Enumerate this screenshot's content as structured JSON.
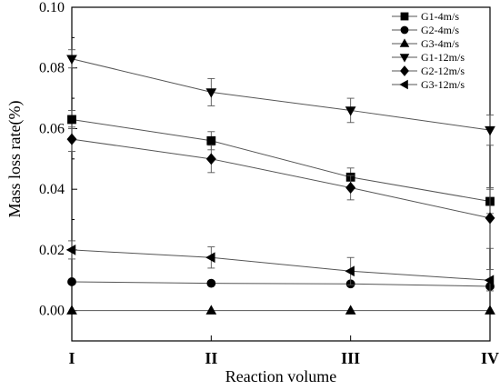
{
  "chart_data": {
    "type": "line",
    "title": "",
    "xlabel": "Reaction volume",
    "ylabel": "Mass loss rate(%)",
    "categories": [
      "I",
      "II",
      "III",
      "IV"
    ],
    "ylim": [
      -0.01,
      0.1
    ],
    "yticks": [
      "0.00",
      "0.02",
      "0.04",
      "0.06",
      "0.08",
      "0.10"
    ],
    "grid": false,
    "legend": "top-right",
    "series": [
      {
        "name": "G1-4m/s",
        "marker": "square",
        "values": [
          0.063,
          0.056,
          0.044,
          0.036
        ],
        "errors": [
          0.003,
          0.003,
          0.003,
          0.004
        ]
      },
      {
        "name": "G2-4m/s",
        "marker": "circle",
        "values": [
          0.0095,
          0.009,
          0.0088,
          0.008
        ],
        "errors": [
          0,
          0,
          0,
          0
        ]
      },
      {
        "name": "G3-4m/s",
        "marker": "triangle-up",
        "values": [
          0.0,
          0.0,
          0.0,
          0.0
        ],
        "errors": [
          0,
          0,
          0,
          0
        ]
      },
      {
        "name": "G1-12m/s",
        "marker": "triangle-down",
        "values": [
          0.083,
          0.072,
          0.066,
          0.0595
        ],
        "errors": [
          0.003,
          0.0045,
          0.004,
          0.005
        ]
      },
      {
        "name": "G2-12m/s",
        "marker": "diamond",
        "values": [
          0.0565,
          0.05,
          0.0405,
          0.0305
        ],
        "errors": [
          0.004,
          0.0045,
          0.004,
          0.01
        ]
      },
      {
        "name": "G3-12m/s",
        "marker": "triangle-left",
        "values": [
          0.02,
          0.0175,
          0.013,
          0.01
        ],
        "errors": [
          0.003,
          0.0035,
          0.0045,
          0.0035
        ]
      }
    ]
  }
}
